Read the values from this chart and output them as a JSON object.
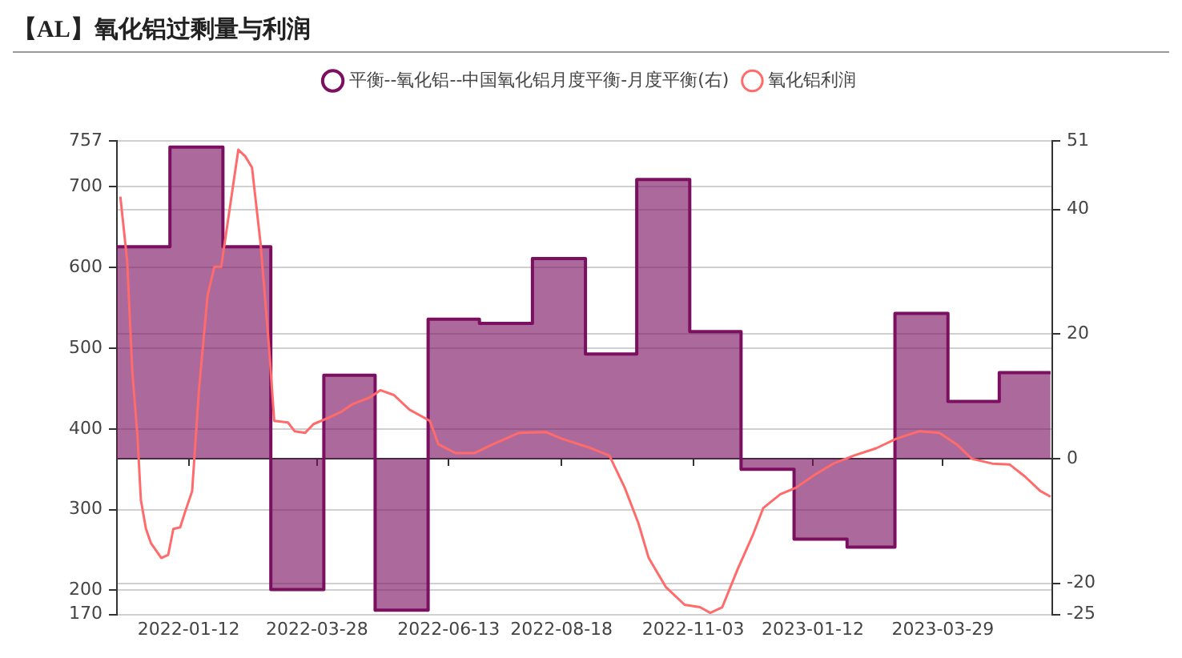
{
  "chart_data": {
    "type": "line",
    "title": "【AL】氧化铝过剩量与利润",
    "xlim": [
      "2021-12-01",
      "2023-06-01"
    ],
    "xticks": [
      "2022-01-12",
      "2022-03-28",
      "2022-06-13",
      "2022-08-18",
      "2022-11-03",
      "2023-01-12",
      "2023-03-29"
    ],
    "ylim": [
      170,
      757
    ],
    "yticks": [
      170,
      200,
      300,
      400,
      500,
      600,
      700,
      757
    ],
    "y2lim": [
      -25,
      51
    ],
    "y2ticks": [
      -25,
      -20,
      0,
      20,
      40,
      51
    ],
    "grid": "y",
    "legend": "top",
    "series": [
      {
        "name": "平衡--氧化铝--中国氧化铝月度平衡-月度平衡(右)",
        "type": "step",
        "axis": "y2",
        "color": "#7b1060",
        "x": [
          "2021-12-01",
          "2022-01-01",
          "2022-02-01",
          "2022-03-01",
          "2022-04-01",
          "2022-05-01",
          "2022-06-01",
          "2022-07-01",
          "2022-08-01",
          "2022-09-01",
          "2022-10-01",
          "2022-11-01",
          "2022-12-01",
          "2023-01-01",
          "2023-02-01",
          "2023-03-01",
          "2023-04-01",
          "2023-05-01",
          "2023-05-31"
        ],
        "values": [
          34,
          50,
          34,
          -21,
          13.4,
          -24.3,
          22.4,
          21.7,
          32.1,
          16.8,
          44.8,
          20.4,
          -1.7,
          -12.9,
          -14.2,
          23.3,
          9.2,
          13.8,
          13.8
        ]
      },
      {
        "name": "氧化铝利润",
        "color": "#ff6b6b",
        "x": [
          "2021-12-03",
          "2021-12-07",
          "2021-12-10",
          "2021-12-13",
          "2021-12-15",
          "2021-12-18",
          "2021-12-21",
          "2021-12-27",
          "2021-12-31",
          "2022-01-03",
          "2022-01-07",
          "2022-01-10",
          "2022-01-14",
          "2022-01-18",
          "2022-01-23",
          "2022-01-27",
          "2022-01-31",
          "2022-02-04",
          "2022-02-10",
          "2022-02-14",
          "2022-02-18",
          "2022-02-23",
          "2022-02-28",
          "2022-03-03",
          "2022-03-11",
          "2022-03-15",
          "2022-03-21",
          "2022-03-26",
          "2022-04-03",
          "2022-04-11",
          "2022-04-18",
          "2022-04-28",
          "2022-05-04",
          "2022-05-12",
          "2022-05-21",
          "2022-06-02",
          "2022-06-07",
          "2022-06-17",
          "2022-06-28",
          "2022-07-09",
          "2022-07-24",
          "2022-08-09",
          "2022-08-18",
          "2022-09-03",
          "2022-09-15",
          "2022-09-24",
          "2022-10-02",
          "2022-10-08",
          "2022-10-18",
          "2022-10-29",
          "2022-11-07",
          "2022-11-13",
          "2022-11-20",
          "2022-11-29",
          "2022-12-08",
          "2022-12-14",
          "2022-12-24",
          "2023-01-02",
          "2023-01-13",
          "2023-01-24",
          "2023-02-05",
          "2023-02-18",
          "2023-03-02",
          "2023-03-15",
          "2023-03-27",
          "2023-04-06",
          "2023-04-15",
          "2023-04-27",
          "2023-05-07",
          "2023-05-16",
          "2023-05-25",
          "2023-05-31"
        ],
        "values": [
          688,
          608,
          471,
          392,
          312,
          276,
          258,
          240,
          244,
          276,
          278,
          298,
          323,
          449,
          565,
          601,
          601,
          659,
          746,
          738,
          724,
          630,
          500,
          410,
          408,
          397,
          395,
          406,
          413,
          421,
          431,
          439,
          448,
          442,
          424,
          410,
          381,
          370,
          370,
          381,
          395,
          396,
          388,
          377,
          367,
          327,
          283,
          240,
          204,
          182,
          179,
          172,
          179,
          226,
          269,
          302,
          319,
          327,
          343,
          357,
          367,
          376,
          388,
          397,
          395,
          381,
          363,
          357,
          356,
          341,
          323,
          316
        ]
      }
    ]
  }
}
